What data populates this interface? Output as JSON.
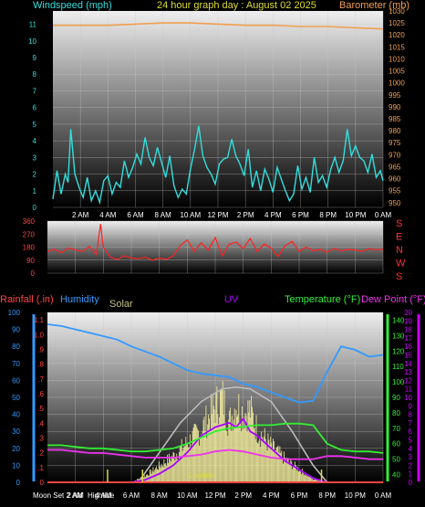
{
  "header": {
    "left_title": "Windspeed (mph)",
    "center_title": "24 hour graph day : August 02 2025",
    "right_title": "Barometer (mb)"
  },
  "panel3_titles": {
    "rainfall": "Rainfall (.in)",
    "humidity": "Humidity",
    "solar": "Solar",
    "uv": "UV",
    "temperature": "Temperature (°F)",
    "dew_point": "Dew Point (°F)"
  },
  "colors": {
    "windspeed": "#33dddd",
    "barometer": "#f0a050",
    "direction": "#ff2222",
    "rain": "#ff4444",
    "humidity": "#3399ff",
    "solar": "#f5eea0",
    "uv": "#aa00ff",
    "temperature": "#33ee33",
    "dew_point": "#ee33ee",
    "sun_arc": "#bbbbbb",
    "grid": "#c8c8c8",
    "blue_axis": "#3399ff",
    "green_axis": "#33ee33",
    "purple_axis": "#cc00ff"
  },
  "x_ticks": [
    "2 AM",
    "4 AM",
    "6 AM",
    "8 AM",
    "10 AM",
    "12 PM",
    "2 PM",
    "4 PM",
    "6 PM",
    "8 PM",
    "10 PM",
    "0 AM"
  ],
  "chart_data": [
    {
      "type": "line",
      "title": "Windspeed and Barometer",
      "x_unit": "hours",
      "xlim": [
        0,
        24
      ],
      "y_left": {
        "label": "Windspeed (mph)",
        "ticks": [
          0,
          1,
          2,
          3,
          4,
          5,
          6,
          7,
          8,
          9,
          10,
          11
        ],
        "lim": [
          0,
          11.8
        ]
      },
      "y_right": {
        "label": "Barometer (mb)",
        "ticks": [
          950,
          955,
          960,
          965,
          970,
          975,
          980,
          985,
          990,
          995,
          1000,
          1005,
          1010,
          1015,
          1020,
          1025,
          1030
        ],
        "lim": [
          948,
          1030
        ]
      },
      "series": [
        {
          "name": "Windspeed",
          "axis": "left",
          "x": [
            0,
            0.3,
            0.6,
            0.9,
            1.1,
            1.3,
            1.6,
            1.9,
            2.2,
            2.5,
            2.8,
            3.1,
            3.4,
            3.7,
            4,
            4.3,
            4.6,
            4.9,
            5.2,
            5.5,
            5.8,
            6.1,
            6.4,
            6.7,
            7,
            7.3,
            7.6,
            7.9,
            8.2,
            8.5,
            8.8,
            9.1,
            9.4,
            9.7,
            10,
            10.3,
            10.6,
            10.9,
            11.2,
            11.5,
            11.8,
            12.1,
            12.4,
            12.7,
            13,
            13.3,
            13.6,
            13.9,
            14.2,
            14.5,
            14.8,
            15.1,
            15.4,
            15.7,
            16,
            16.3,
            16.6,
            16.9,
            17.2,
            17.5,
            17.8,
            18.1,
            18.4,
            18.7,
            19,
            19.3,
            19.6,
            19.9,
            20.2,
            20.5,
            20.8,
            21.1,
            21.4,
            21.7,
            22,
            22.3,
            22.6,
            22.9,
            23.2,
            23.5,
            23.8,
            24
          ],
          "y": [
            0.5,
            2.2,
            0.8,
            2.0,
            1.5,
            4.7,
            2.0,
            1.2,
            0.6,
            1.8,
            0.4,
            1.0,
            0.3,
            1.6,
            1.9,
            0.8,
            1.5,
            1.2,
            2.8,
            1.8,
            2.4,
            3.2,
            2.6,
            4.2,
            3.0,
            2.5,
            3.6,
            2.7,
            1.8,
            3.1,
            1.3,
            0.6,
            1.1,
            0.8,
            2.3,
            3.5,
            4.9,
            3.1,
            2.4,
            2.0,
            1.4,
            2.6,
            2.9,
            3.0,
            4.1,
            3.1,
            2.6,
            1.9,
            3.5,
            1.2,
            2.2,
            1.0,
            2.3,
            1.7,
            0.9,
            2.4,
            1.7,
            1.0,
            0.4,
            0.8,
            2.5,
            1.1,
            1.8,
            0.9,
            3.0,
            1.5,
            1.9,
            1.2,
            2.3,
            3.0,
            2.1,
            2.8,
            4.7,
            3.1,
            3.7,
            3.0,
            2.8,
            2.1,
            3.2,
            1.8,
            2.2,
            1.6
          ]
        },
        {
          "name": "Barometer",
          "axis": "right",
          "x": [
            0,
            2,
            4,
            6,
            8,
            10,
            12,
            14,
            16,
            18,
            20,
            22,
            24
          ],
          "y": [
            1024,
            1024,
            1024,
            1024.5,
            1025,
            1025,
            1024.5,
            1024,
            1024,
            1023.5,
            1023.5,
            1023,
            1022.5
          ]
        }
      ]
    },
    {
      "type": "line",
      "title": "Wind Direction",
      "x_unit": "hours",
      "xlim": [
        0,
        24
      ],
      "y_left": {
        "ticks": [
          0,
          90,
          180,
          270,
          360
        ],
        "lim": [
          0,
          360
        ]
      },
      "y_right_labels": [
        "S",
        "E",
        "N",
        "W",
        "S"
      ],
      "series": [
        {
          "name": "Direction",
          "x": [
            0,
            0.5,
            1,
            1.5,
            2,
            2.5,
            3,
            3.5,
            3.8,
            4,
            4.5,
            5,
            5.5,
            6,
            6.5,
            7,
            7.5,
            8,
            8.5,
            9,
            9.5,
            10,
            10.5,
            11,
            11.5,
            12,
            12.5,
            13,
            13.5,
            14,
            14.5,
            15,
            15.5,
            16,
            16.5,
            17,
            17.5,
            18,
            18.5,
            19,
            19.5,
            20,
            20.5,
            21,
            21.5,
            22,
            22.5,
            23,
            23.5,
            24
          ],
          "y": [
            150,
            165,
            140,
            175,
            160,
            150,
            185,
            130,
            340,
            180,
            110,
            95,
            120,
            105,
            100,
            110,
            90,
            105,
            95,
            120,
            190,
            230,
            150,
            210,
            160,
            245,
            120,
            200,
            215,
            170,
            240,
            150,
            200,
            175,
            115,
            190,
            220,
            150,
            180,
            155,
            165,
            145,
            170,
            155,
            165,
            160,
            150,
            170,
            160,
            165
          ]
        }
      ]
    },
    {
      "type": "line",
      "title": "Rain, Humidity, Solar, UV, Temperature, Dew Point",
      "x_unit": "hours",
      "xlim": [
        0,
        24
      ],
      "y_axes": {
        "rain": {
          "ticks": [
            0,
            0.1,
            0.2,
            0.3,
            0.4,
            0.5,
            0.6,
            0.7,
            0.8,
            0.9,
            1,
            1.1
          ],
          "lim": [
            0,
            1.15
          ]
        },
        "humidity": {
          "ticks": [
            0,
            10,
            20,
            30,
            40,
            50,
            60,
            70,
            80,
            90,
            100
          ],
          "lim": [
            0,
            100
          ]
        },
        "temperature": {
          "ticks": [
            40,
            50,
            60,
            70,
            80,
            90,
            100,
            110,
            120,
            130,
            140
          ],
          "lim": [
            35,
            145
          ]
        },
        "uv": {
          "ticks": [
            0,
            1,
            2,
            3,
            4,
            5,
            6,
            7,
            8,
            9,
            10,
            11,
            12,
            13,
            14,
            15,
            16,
            17,
            18,
            19,
            20
          ],
          "lim": [
            0,
            20
          ]
        }
      },
      "annotations": {
        "moon_set": "Moon Set 2 AM",
        "high_tide": "Hightide",
        "low_tide": "Lowtide"
      },
      "series": [
        {
          "name": "Humidity",
          "axis": "humidity",
          "x": [
            0,
            1,
            2,
            3,
            4,
            5,
            6,
            7,
            8,
            9,
            10,
            11,
            12,
            13,
            14,
            15,
            16,
            17,
            18,
            19,
            20,
            21,
            22,
            23,
            24
          ],
          "y": [
            93,
            92,
            90,
            88,
            86,
            84,
            80,
            77,
            74,
            70,
            66,
            64,
            63,
            62,
            58,
            56,
            53,
            50,
            47,
            48,
            65,
            80,
            78,
            74,
            75
          ]
        },
        {
          "name": "Temperature",
          "axis": "temperature",
          "x": [
            0,
            1,
            2,
            3,
            4,
            5,
            6,
            7,
            8,
            9,
            10,
            11,
            12,
            13,
            14,
            15,
            16,
            17,
            18,
            19,
            20,
            21,
            22,
            23,
            24
          ],
          "y": [
            59,
            59,
            58,
            57,
            57,
            56,
            55,
            55,
            56,
            57,
            60,
            64,
            68,
            70,
            71,
            72,
            72,
            73,
            73,
            72,
            60,
            56,
            55,
            55,
            54
          ]
        },
        {
          "name": "Dew Point",
          "axis": "temperature",
          "x": [
            0,
            1,
            2,
            3,
            4,
            5,
            6,
            7,
            8,
            9,
            10,
            11,
            12,
            13,
            14,
            15,
            16,
            17,
            18,
            19,
            20,
            21,
            22,
            23,
            24
          ],
          "y": [
            56,
            56,
            55,
            54,
            54,
            53,
            52,
            51,
            51,
            51,
            52,
            53,
            55,
            56,
            55,
            53,
            51,
            50,
            50,
            50,
            52,
            52,
            51,
            50,
            50
          ]
        },
        {
          "name": "UV",
          "axis": "uv",
          "x": [
            6,
            7,
            8,
            9,
            10,
            11,
            12,
            13,
            13.5,
            14,
            14.5,
            15,
            16,
            17,
            18,
            19,
            20
          ],
          "y": [
            0,
            0.3,
            1,
            2,
            3.5,
            5.5,
            6.5,
            7,
            6.5,
            7.5,
            6,
            5.5,
            4,
            2.5,
            1.5,
            0.5,
            0
          ]
        },
        {
          "name": "Solar",
          "axis": "uv",
          "x": [
            6,
            7,
            8,
            9,
            10,
            11,
            12,
            12.5,
            13,
            13.5,
            14,
            14.5,
            15,
            16,
            17,
            18,
            19,
            20
          ],
          "y": [
            0,
            1,
            2.5,
            4,
            6,
            8,
            11.5,
            13,
            9,
            12,
            10.5,
            11,
            8,
            5.5,
            3.5,
            2,
            0.5,
            0
          ]
        },
        {
          "name": "Sun arc",
          "axis": "uv",
          "x": [
            6.5,
            8,
            9.5,
            11,
            12.5,
            13.5,
            14.5,
            16,
            17.5,
            19,
            20
          ],
          "y": [
            0,
            3.5,
            7,
            9.5,
            11,
            11.2,
            11,
            9.5,
            6,
            2,
            0
          ]
        },
        {
          "name": "Rainfall",
          "axis": "rain",
          "x": [
            0,
            24
          ],
          "y": [
            0,
            0
          ]
        }
      ]
    }
  ]
}
